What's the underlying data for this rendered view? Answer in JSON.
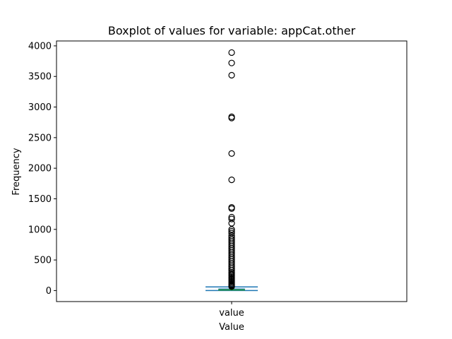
{
  "chart_data": {
    "type": "boxplot",
    "title": "Boxplot of values for variable: appCat.other",
    "xlabel": "Value",
    "ylabel": "Frequency",
    "categories": [
      "value"
    ],
    "ylim": [
      -180,
      4080
    ],
    "yticks": [
      0,
      500,
      1000,
      1500,
      2000,
      2500,
      3000,
      3500,
      4000
    ],
    "grid": false,
    "box": {
      "category": "value",
      "min": 0,
      "q1": 5,
      "median": 10,
      "q3": 25,
      "max": 60
    },
    "outliers": [
      3890,
      3720,
      3520,
      2840,
      2820,
      2240,
      1810,
      1360,
      1340,
      1200,
      1170,
      1100,
      1000,
      970,
      940,
      900,
      870,
      840,
      810,
      780,
      750,
      720,
      690,
      660,
      630,
      600,
      570,
      540,
      510,
      480,
      450,
      420,
      390,
      360,
      330,
      300,
      280,
      260,
      240,
      220,
      200,
      180,
      160,
      140,
      120,
      100,
      90,
      80,
      70,
      65
    ],
    "colors": {
      "box": "#1f77b4",
      "median": "#2ca02c",
      "whisker": "#1f77b4",
      "cap": "#1f77b4",
      "outlier": "#000000",
      "axes": "#000000"
    }
  }
}
